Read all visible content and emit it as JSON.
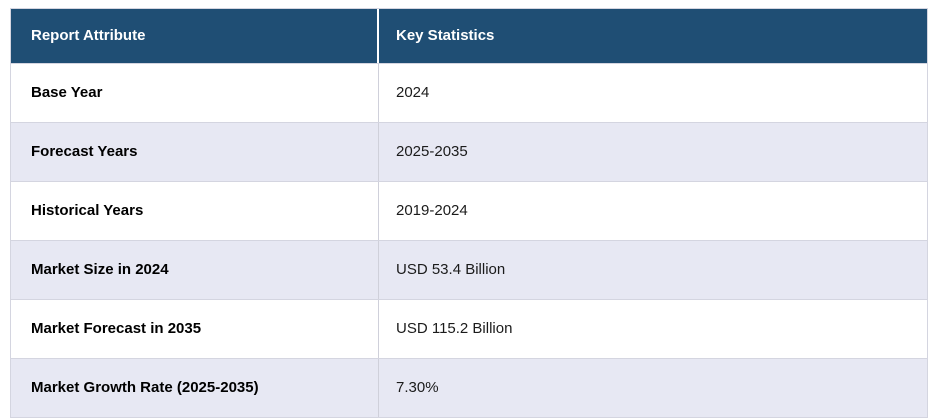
{
  "table": {
    "columns": {
      "attribute_header": "Report Attribute",
      "value_header": "Key Statistics"
    },
    "rows": [
      {
        "attribute": "Base Year",
        "value": "2024"
      },
      {
        "attribute": "Forecast Years",
        "value": "2025-2035"
      },
      {
        "attribute": "Historical Years",
        "value": "2019-2024"
      },
      {
        "attribute": "Market Size in 2024",
        "value": "USD 53.4 Billion"
      },
      {
        "attribute": "Market Forecast in 2035",
        "value": "USD 115.2 Billion"
      },
      {
        "attribute": "Market Growth Rate (2025-2035)",
        "value": "7.30%"
      }
    ],
    "colors": {
      "header_bg": "#1f4e74",
      "header_text": "#ffffff",
      "row_alt_bg": "#e7e8f3",
      "row_bg": "#ffffff",
      "border": "#d4d5e0",
      "body_text": "#1b1b1b"
    }
  }
}
